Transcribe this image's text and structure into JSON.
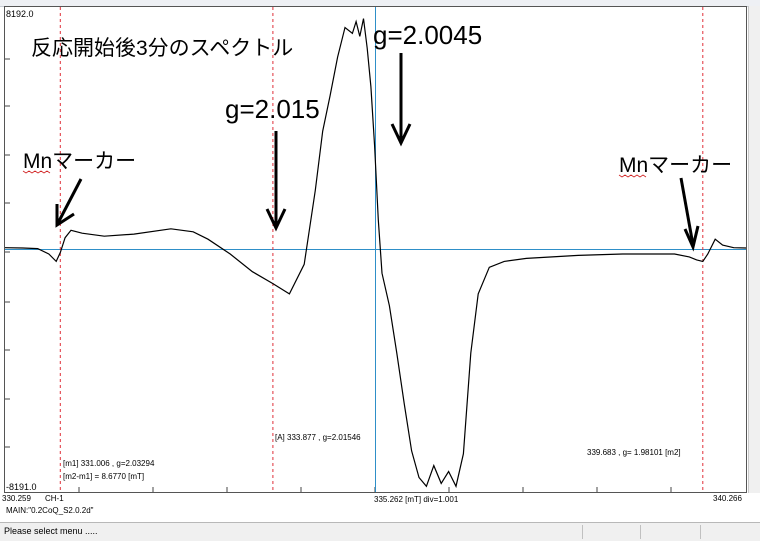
{
  "axis": {
    "y_top": "8192.0",
    "y_bottom": "-8191.0",
    "x_left": "330.259",
    "x_right": "340.266",
    "channel": "CH-1",
    "x_center_readout": "335.262 [mT]  div=1.001",
    "main_file": "MAIN:\"0.2CoQ_S2.0.2d\""
  },
  "annotations": {
    "title": "反応開始後3分のスペクトル",
    "g_main": "g=2.0045",
    "g_shoulder": "g=2.015",
    "mn_left": "Mnマーカー",
    "mn_right": "Mnマーカー"
  },
  "markers": {
    "m1_line1": "[m1]   331.006 , g=2.03294",
    "m1_line2": "[m2-m1] = 8.6770  [mT]",
    "a_label": "[A]   333.877 , g=2.01546",
    "m2_label": "339.683 , g=  1.98101   [m2]"
  },
  "status": {
    "message": "Please select menu ....."
  },
  "colors": {
    "trace": "#000000",
    "baseline": "#2e8fc8",
    "cursor": "#2e8fc8",
    "marker_lines": "#e0303a",
    "squiggle": "#d02020"
  },
  "chart_data": {
    "type": "line",
    "title": "反応開始後3分のスペクトル",
    "xlabel": "[mT]",
    "ylabel": "",
    "xlim": [
      330.259,
      340.266
    ],
    "ylim": [
      -8191.0,
      8192.0
    ],
    "grid": false,
    "series": [
      {
        "x": [
          330.259,
          330.5,
          330.7,
          330.85,
          330.95,
          331.006,
          331.07,
          331.15,
          331.3,
          331.6,
          332.0,
          332.5,
          332.8,
          333.0,
          333.3,
          333.6,
          333.877,
          334.1,
          334.3,
          334.45,
          334.55,
          334.65,
          334.75,
          334.85,
          334.95,
          335.0,
          335.05,
          335.1,
          335.15,
          335.2,
          335.25,
          335.3,
          335.35,
          335.45,
          335.55,
          335.65,
          335.75,
          335.85,
          335.95,
          336.05,
          336.15,
          336.25,
          336.35,
          336.45,
          336.55,
          336.65,
          336.8,
          337.0,
          337.3,
          338.0,
          338.6,
          339.0,
          339.3,
          339.5,
          339.6,
          339.683,
          339.75,
          339.85,
          339.95,
          340.1,
          340.266
        ],
        "y": [
          60,
          50,
          30,
          -150,
          -400,
          -100,
          400,
          650,
          550,
          450,
          520,
          700,
          600,
          350,
          -150,
          -750,
          -1150,
          -1500,
          -500,
          2000,
          4000,
          5200,
          6500,
          7500,
          7300,
          7700,
          7200,
          7800,
          6800,
          5500,
          3500,
          1000,
          -800,
          -1900,
          -3500,
          -5200,
          -6800,
          -7700,
          -8000,
          -7300,
          -7900,
          -7500,
          -8000,
          -6900,
          -3500,
          -1500,
          -600,
          -400,
          -300,
          -200,
          -150,
          -150,
          -150,
          -250,
          -350,
          -400,
          -150,
          350,
          150,
          60,
          50
        ]
      }
    ]
  }
}
